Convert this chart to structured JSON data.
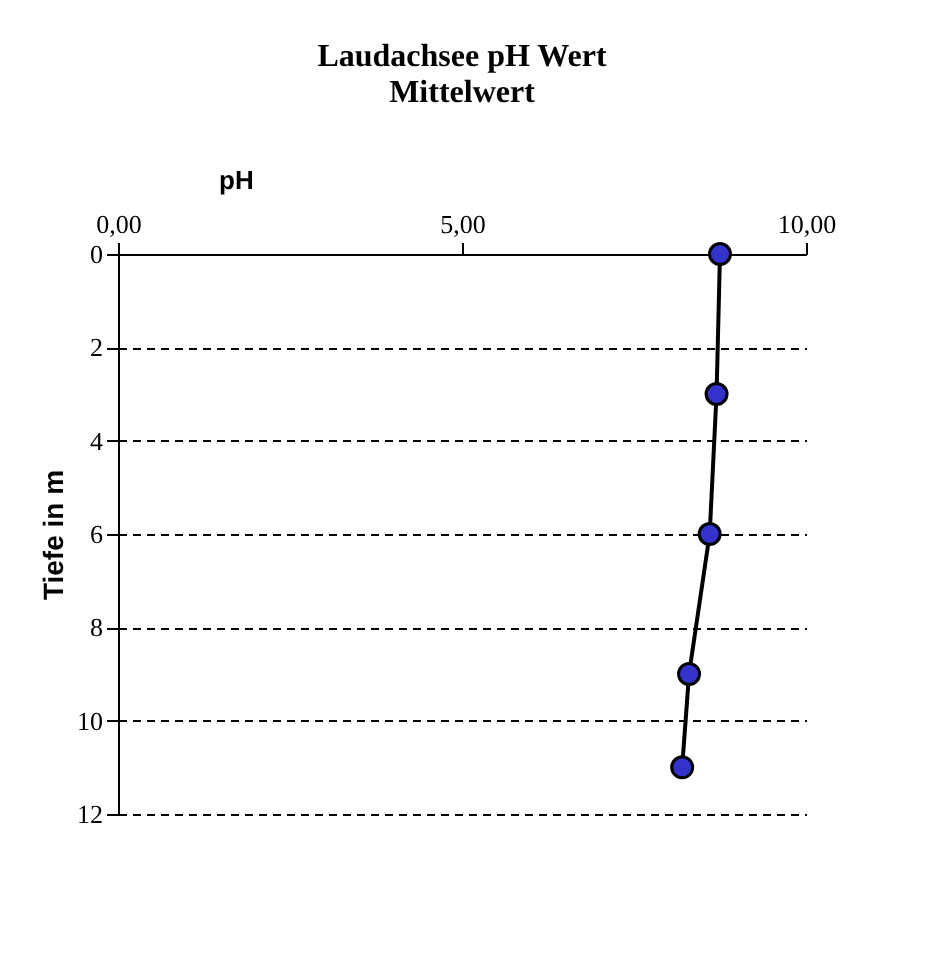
{
  "chart_data": {
    "type": "line",
    "title": "Laudachsee  pH Wert\nMittelwert",
    "xlabel": "pH",
    "ylabel": "Tiefe in m",
    "series": [
      {
        "color": "#3333cc",
        "x": [
          8.75,
          8.7,
          8.6,
          8.3,
          8.2
        ],
        "values": [
          0,
          3,
          6,
          9,
          11
        ]
      }
    ],
    "xlim": [
      0,
      10
    ],
    "xticks": [
      {
        "value": 0,
        "label": "0,00"
      },
      {
        "value": 5,
        "label": "5,00"
      },
      {
        "value": 10,
        "label": "10,00"
      }
    ],
    "ylim": [
      12,
      0
    ],
    "yticks": [
      0,
      2,
      4,
      6,
      8,
      10,
      12
    ],
    "grid": "y",
    "marker": "circle",
    "line_style": "solid"
  }
}
